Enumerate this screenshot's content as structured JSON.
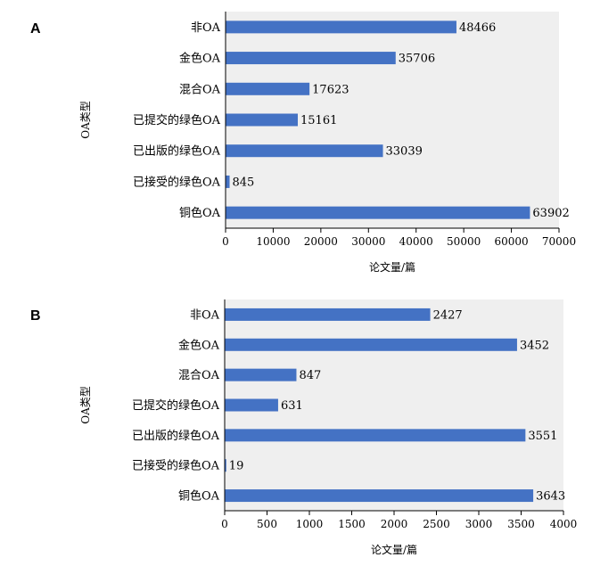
{
  "chart_data": [
    {
      "panel": "A",
      "type": "bar",
      "orientation": "horizontal",
      "categories": [
        "非OA",
        "金色OA",
        "混合OA",
        "已提交的绿色OA",
        "已出版的绿色OA",
        "已接受的绿色OA",
        "铜色OA"
      ],
      "values": [
        48466,
        35706,
        17623,
        15161,
        33039,
        845,
        63902
      ],
      "value_labels": [
        "48466",
        "35706",
        "17623",
        "15161",
        "33039",
        "845",
        "63902"
      ],
      "xlim": [
        0,
        70000
      ],
      "xticks": [
        "0",
        "10000",
        "20000",
        "30000",
        "40000",
        "50000",
        "60000",
        "70000"
      ],
      "xlabel": "论文量/篇",
      "ylabel": "OA类型",
      "bar_color": "#4472C4",
      "plot_bg": "#EFEFEF",
      "grid": false
    },
    {
      "panel": "B",
      "type": "bar",
      "orientation": "horizontal",
      "categories": [
        "非OA",
        "金色OA",
        "混合OA",
        "已提交的绿色OA",
        "已出版的绿色OA",
        "已接受的绿色OA",
        "铜色OA"
      ],
      "values": [
        2427,
        3452,
        847,
        631,
        3551,
        19,
        3643
      ],
      "value_labels": [
        "2427",
        "3452",
        "847",
        "631",
        "3551",
        "19",
        "3643"
      ],
      "xlim": [
        0,
        4000
      ],
      "xticks": [
        "0",
        "500",
        "1000",
        "1500",
        "2000",
        "2500",
        "3000",
        "3500",
        "4000"
      ],
      "xlabel": "论文量/篇",
      "ylabel": "OA类型",
      "bar_color": "#4472C4",
      "plot_bg": "#EFEFEF",
      "grid": false
    }
  ]
}
